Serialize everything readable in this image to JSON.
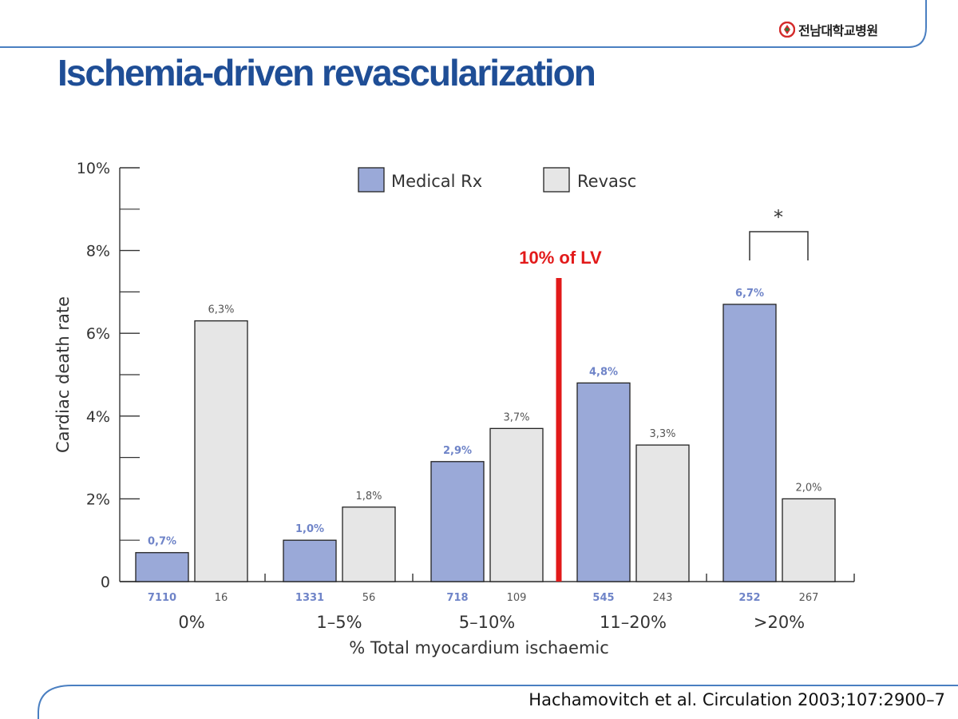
{
  "slide": {
    "title": "Ischemia-driven revascularization",
    "logo_text": "전남대학교병원",
    "citation": "Hachamovitch et al. Circulation 2003;107:2900–7",
    "colors": {
      "title": "#1f4e96",
      "frame_line": "#4a7fc1",
      "logo_mark": "#d42a2a"
    }
  },
  "chart_data": {
    "type": "bar",
    "categories": [
      "0%",
      "1–5%",
      "5–10%",
      "11–20%",
      ">20%"
    ],
    "xlabel": "% Total myocardium ischaemic",
    "ylabel": "Cardiac death rate",
    "ylim": [
      0,
      10
    ],
    "y_ticks": [
      {
        "value": 0,
        "label": "0"
      },
      {
        "value": 2,
        "label": "2%"
      },
      {
        "value": 4,
        "label": "4%"
      },
      {
        "value": 6,
        "label": "6%"
      },
      {
        "value": 8,
        "label": "8%"
      },
      {
        "value": 10,
        "label": "10%"
      }
    ],
    "y_minor_ticks": [
      1,
      3,
      5,
      7,
      9
    ],
    "legend_position": "top",
    "series": [
      {
        "name": "Medical Rx",
        "color": "#9aa9d8",
        "label_color": "#6f84c8",
        "values": [
          0.7,
          1.0,
          2.9,
          4.8,
          6.7
        ],
        "value_labels": [
          "0,7%",
          "1,0%",
          "2,9%",
          "4,8%",
          "6,7%"
        ],
        "n": [
          "7110",
          "1331",
          "718",
          "545",
          "252"
        ]
      },
      {
        "name": "Revasc",
        "color": "#e6e6e6",
        "label_color": "#555555",
        "values": [
          6.3,
          1.8,
          3.7,
          3.3,
          2.0
        ],
        "value_labels": [
          "6,3%",
          "1,8%",
          "3,7%",
          "3,3%",
          "2,0%"
        ],
        "n": [
          "16",
          "56",
          "109",
          "243",
          "267"
        ]
      }
    ],
    "annotations": {
      "threshold_label": "10% of LV",
      "threshold_color": "#e21a1a",
      "significance_marker": "*"
    }
  }
}
